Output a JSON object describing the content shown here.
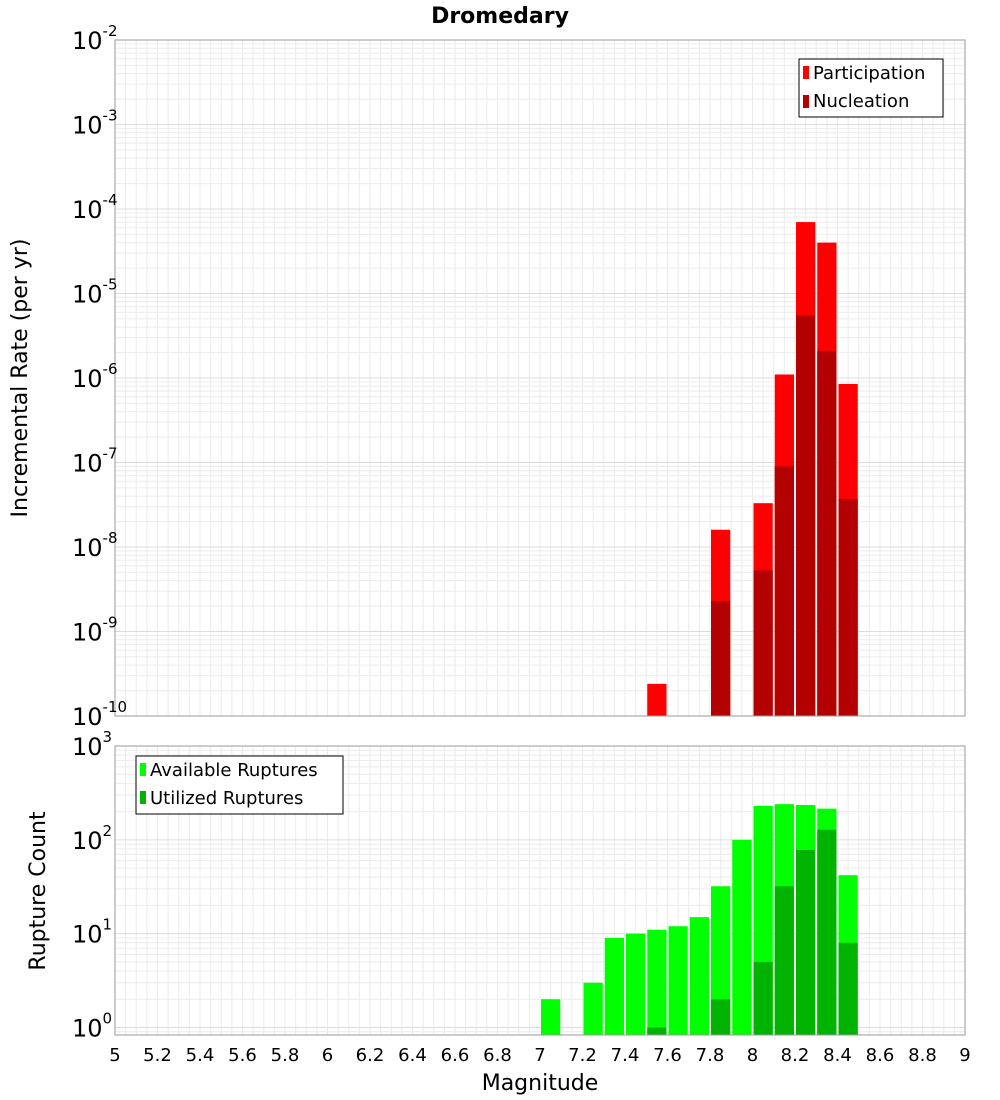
{
  "chart_data": [
    {
      "type": "bar",
      "title": "Dromedary",
      "xlabel": "",
      "ylabel": "Incremental Rate (per yr)",
      "yscale": "log",
      "ylim_exponents": [
        -10,
        -2
      ],
      "xlim": [
        5,
        9
      ],
      "bin_width": 0.1,
      "legend_position": "top-right",
      "series": [
        {
          "name": "Participation",
          "color": "#ff0000",
          "x": [
            7.55,
            7.85,
            8.05,
            8.15,
            8.25,
            8.35,
            8.45
          ],
          "values": [
            2.4e-10,
            1.6e-08,
            3.3e-08,
            1.1e-06,
            7e-05,
            4e-05,
            8.5e-07
          ]
        },
        {
          "name": "Nucleation",
          "color": "#b30000",
          "x": [
            7.85,
            8.05,
            8.15,
            8.25,
            8.35,
            8.45
          ],
          "values": [
            2.3e-09,
            5.3e-09,
            9e-08,
            5.5e-06,
            2.1e-06,
            3.7e-08
          ]
        }
      ]
    },
    {
      "type": "bar",
      "title": "",
      "xlabel": "Magnitude",
      "ylabel": "Rupture Count",
      "yscale": "log",
      "ylim_exponents": [
        -0.08,
        3
      ],
      "xlim": [
        5,
        9
      ],
      "bin_width": 0.1,
      "legend_position": "top-left",
      "series": [
        {
          "name": "Available Ruptures",
          "color": "#00ff00",
          "x": [
            7.05,
            7.25,
            7.35,
            7.45,
            7.55,
            7.65,
            7.75,
            7.85,
            7.95,
            8.05,
            8.15,
            8.25,
            8.35,
            8.45
          ],
          "values": [
            2,
            3,
            9,
            10,
            11,
            12,
            15,
            32,
            100,
            230,
            240,
            235,
            215,
            42
          ]
        },
        {
          "name": "Utilized Ruptures",
          "color": "#00b300",
          "x": [
            7.55,
            7.85,
            8.05,
            8.15,
            8.25,
            8.35,
            8.45
          ],
          "values": [
            1,
            2,
            5,
            32,
            78,
            128,
            8
          ]
        }
      ]
    }
  ],
  "x_ticks": [
    "5",
    "5.2",
    "5.4",
    "5.6",
    "5.8",
    "6",
    "6.2",
    "6.4",
    "6.6",
    "6.8",
    "7",
    "7.2",
    "7.4",
    "7.6",
    "7.8",
    "8",
    "8.2",
    "8.4",
    "8.6",
    "8.8",
    "9"
  ],
  "y_ticks_top": [
    {
      "base": "10",
      "exp": "-10",
      "value": -10
    },
    {
      "base": "10",
      "exp": "-9",
      "value": -9
    },
    {
      "base": "10",
      "exp": "-8",
      "value": -8
    },
    {
      "base": "10",
      "exp": "-7",
      "value": -7
    },
    {
      "base": "10",
      "exp": "-6",
      "value": -6
    },
    {
      "base": "10",
      "exp": "-5",
      "value": -5
    },
    {
      "base": "10",
      "exp": "-4",
      "value": -4
    },
    {
      "base": "10",
      "exp": "-3",
      "value": -3
    },
    {
      "base": "10",
      "exp": "-2",
      "value": -2
    }
  ],
  "y_ticks_bottom": [
    {
      "base": "10",
      "exp": "0",
      "value": 0
    },
    {
      "base": "10",
      "exp": "1",
      "value": 1
    },
    {
      "base": "10",
      "exp": "2",
      "value": 2
    },
    {
      "base": "10",
      "exp": "3",
      "value": 3
    }
  ]
}
